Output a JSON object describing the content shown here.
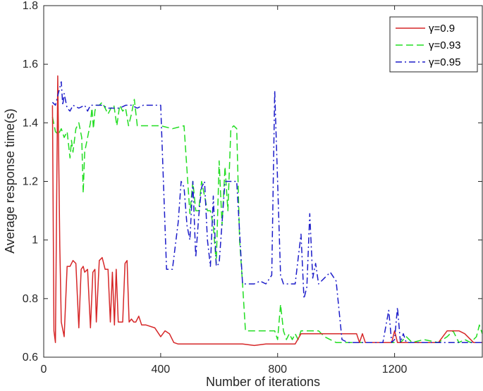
{
  "chart_data": {
    "type": "line",
    "xlabel": "Number of iterations",
    "ylabel": "Average response time(s)",
    "xlim": [
      0,
      1500
    ],
    "ylim": [
      0.6,
      1.8
    ],
    "xticks": [
      0,
      400,
      800,
      1200
    ],
    "xtick_labels": [
      "0",
      "400",
      "800",
      "1200"
    ],
    "yticks": [
      0.6,
      0.8,
      1,
      1.2,
      1.4,
      1.6,
      1.8
    ],
    "ytick_labels": [
      "0.6",
      "0.8",
      "1",
      "1.2",
      "1.4",
      "1.6",
      "1.8"
    ],
    "grid": false,
    "legend_position": "top-right",
    "series": [
      {
        "name": "γ=0.9",
        "color": "#d62728",
        "dash": "solid",
        "x": [
          30,
          35,
          40,
          48,
          55,
          60,
          70,
          80,
          90,
          100,
          110,
          120,
          128,
          135,
          140,
          150,
          160,
          168,
          175,
          180,
          190,
          200,
          210,
          220,
          228,
          235,
          242,
          248,
          255,
          262,
          270,
          278,
          285,
          292,
          300,
          308,
          315,
          325,
          335,
          350,
          380,
          400,
          415,
          430,
          445,
          460,
          500,
          560,
          620,
          680,
          720,
          760,
          800,
          860,
          880,
          920,
          980,
          1020,
          1070,
          1080,
          1090,
          1100,
          1150,
          1190,
          1200,
          1210,
          1240,
          1300,
          1350,
          1380,
          1420,
          1440,
          1470,
          1500
        ],
        "values": [
          1.46,
          0.69,
          0.65,
          1.56,
          0.98,
          0.72,
          0.67,
          0.91,
          0.91,
          0.93,
          0.92,
          0.7,
          0.9,
          0.91,
          0.89,
          0.9,
          0.7,
          0.89,
          0.9,
          0.72,
          0.93,
          0.94,
          0.9,
          0.9,
          0.72,
          0.89,
          0.71,
          0.9,
          0.72,
          0.72,
          0.72,
          0.92,
          0.93,
          0.72,
          0.73,
          0.72,
          0.72,
          0.74,
          0.71,
          0.71,
          0.7,
          0.67,
          0.69,
          0.68,
          0.65,
          0.645,
          0.645,
          0.645,
          0.645,
          0.645,
          0.64,
          0.645,
          0.645,
          0.645,
          0.68,
          0.68,
          0.68,
          0.68,
          0.68,
          0.65,
          0.68,
          0.65,
          0.65,
          0.65,
          0.69,
          0.65,
          0.65,
          0.65,
          0.65,
          0.69,
          0.69,
          0.68,
          0.65,
          0.65
        ]
      },
      {
        "name": "γ=0.93",
        "color": "#22dd22",
        "dash": "dashed",
        "x": [
          30,
          40,
          50,
          60,
          70,
          80,
          90,
          95,
          100,
          110,
          120,
          130,
          135,
          140,
          150,
          160,
          165,
          170,
          175,
          180,
          190,
          200,
          210,
          220,
          230,
          240,
          250,
          260,
          270,
          280,
          290,
          300,
          310,
          320,
          330,
          340,
          360,
          400,
          440,
          480,
          500,
          510,
          520,
          530,
          540,
          550,
          560,
          570,
          580,
          590,
          600,
          610,
          620,
          630,
          640,
          650,
          660,
          670,
          680,
          690,
          700,
          720,
          760,
          790,
          800,
          810,
          820,
          830,
          840,
          850,
          860,
          870,
          880,
          900,
          920,
          940,
          960,
          1000,
          1050,
          1100,
          1150,
          1200,
          1220,
          1240,
          1260,
          1300,
          1350,
          1380,
          1400,
          1420,
          1440,
          1460,
          1480,
          1490,
          1500
        ],
        "values": [
          1.42,
          1.37,
          1.36,
          1.38,
          1.35,
          1.37,
          1.28,
          1.34,
          1.3,
          1.38,
          1.4,
          1.35,
          1.16,
          1.3,
          1.35,
          1.4,
          1.45,
          1.38,
          1.44,
          1.46,
          1.46,
          1.47,
          1.45,
          1.43,
          1.45,
          1.46,
          1.39,
          1.46,
          1.44,
          1.45,
          1.39,
          1.43,
          1.48,
          1.39,
          1.39,
          1.39,
          1.39,
          1.39,
          1.38,
          1.39,
          1.09,
          1.2,
          1.1,
          1.1,
          1.2,
          1.15,
          1.1,
          1.1,
          1.05,
          0.92,
          1.27,
          1.05,
          1.25,
          1.1,
          1.38,
          1.39,
          1.38,
          1.0,
          0.85,
          0.69,
          0.69,
          0.69,
          0.69,
          0.69,
          0.66,
          0.78,
          0.69,
          0.66,
          0.68,
          0.66,
          0.68,
          0.66,
          0.69,
          0.69,
          0.69,
          0.69,
          0.67,
          0.65,
          0.65,
          0.65,
          0.65,
          0.65,
          0.65,
          0.67,
          0.65,
          0.66,
          0.65,
          0.67,
          0.69,
          0.65,
          0.66,
          0.65,
          0.67,
          0.71,
          0.68
        ]
      },
      {
        "name": "γ=0.95",
        "color": "#1c1cc9",
        "dash": "dashdot",
        "x": [
          30,
          40,
          50,
          55,
          60,
          65,
          70,
          80,
          90,
          100,
          120,
          140,
          150,
          160,
          180,
          200,
          220,
          240,
          260,
          280,
          300,
          320,
          340,
          360,
          380,
          400,
          420,
          440,
          460,
          470,
          480,
          490,
          500,
          510,
          520,
          530,
          540,
          550,
          560,
          570,
          580,
          590,
          600,
          620,
          640,
          660,
          680,
          700,
          720,
          740,
          760,
          780,
          790,
          800,
          810,
          820,
          830,
          840,
          860,
          880,
          890,
          900,
          910,
          920,
          930,
          940,
          960,
          980,
          1000,
          1020,
          1040,
          1080,
          1120,
          1160,
          1180,
          1190,
          1200,
          1210,
          1220,
          1230,
          1240,
          1260,
          1300,
          1350,
          1400,
          1450,
          1500
        ],
        "values": [
          1.47,
          1.46,
          1.5,
          1.52,
          1.54,
          1.46,
          1.5,
          1.45,
          1.44,
          1.46,
          1.45,
          1.46,
          1.44,
          1.46,
          1.46,
          1.46,
          1.45,
          1.45,
          1.45,
          1.46,
          1.46,
          1.45,
          1.46,
          1.46,
          1.46,
          1.46,
          0.9,
          0.9,
          1.06,
          1.2,
          1.18,
          1.05,
          1.0,
          1.2,
          0.94,
          1.08,
          1.18,
          1.2,
          1.0,
          0.91,
          1.15,
          0.91,
          0.92,
          1.2,
          1.2,
          1.2,
          0.85,
          0.85,
          0.85,
          0.86,
          0.85,
          0.88,
          1.51,
          1.2,
          0.88,
          0.85,
          0.85,
          0.85,
          0.85,
          1.02,
          0.8,
          0.84,
          1.09,
          0.87,
          0.92,
          0.85,
          0.87,
          0.89,
          0.86,
          0.66,
          0.65,
          0.65,
          0.65,
          0.65,
          0.76,
          0.65,
          0.66,
          0.77,
          0.65,
          0.68,
          0.65,
          0.65,
          0.65,
          0.65,
          0.65,
          0.65,
          0.65
        ]
      }
    ]
  }
}
